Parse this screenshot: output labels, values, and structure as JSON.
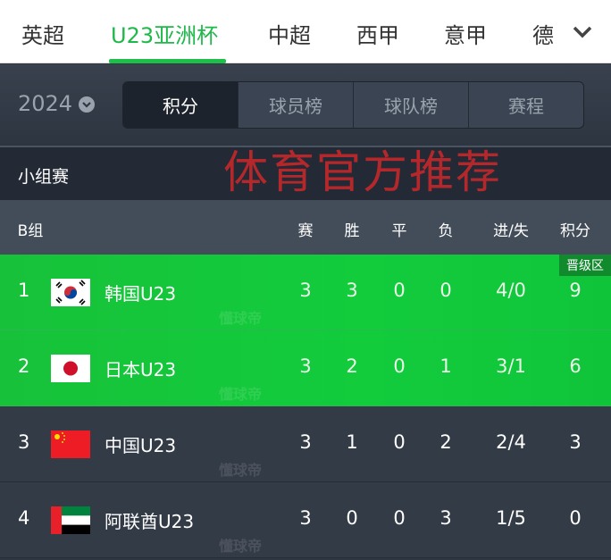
{
  "overlay_text": "体育官方推荐",
  "nav": {
    "items": [
      "英超",
      "U23亚洲杯",
      "中超",
      "西甲",
      "意甲",
      "德"
    ],
    "active": 1
  },
  "season": {
    "year": "2024"
  },
  "tabs": [
    "积分",
    "球员榜",
    "球队榜",
    "赛程"
  ],
  "group_title": "小组赛",
  "table": {
    "group": "B组",
    "columns": [
      "赛",
      "胜",
      "平",
      "负",
      "进/失",
      "积分"
    ],
    "qualify_label": "晋级区",
    "rows": [
      {
        "rank": "1",
        "flag": "korea-flag",
        "team": "韩国U23",
        "played": "3",
        "won": "3",
        "drawn": "0",
        "lost": "0",
        "goals": "4/0",
        "points": "9",
        "qualified": true
      },
      {
        "rank": "2",
        "flag": "japan-flag",
        "team": "日本U23",
        "played": "3",
        "won": "2",
        "drawn": "0",
        "lost": "1",
        "goals": "3/1",
        "points": "6",
        "qualified": true
      },
      {
        "rank": "3",
        "flag": "china-flag",
        "team": "中国U23",
        "played": "3",
        "won": "1",
        "drawn": "0",
        "lost": "2",
        "goals": "2/4",
        "points": "3",
        "qualified": false
      },
      {
        "rank": "4",
        "flag": "uae-flag",
        "team": "阿联酋U23",
        "played": "3",
        "won": "0",
        "drawn": "0",
        "lost": "3",
        "goals": "1/5",
        "points": "0",
        "qualified": false
      }
    ]
  },
  "watermark": "懂球帝",
  "colors": {
    "accent": "#1fc04a",
    "qualify": "#12cc3c",
    "background": "#2f3743"
  }
}
